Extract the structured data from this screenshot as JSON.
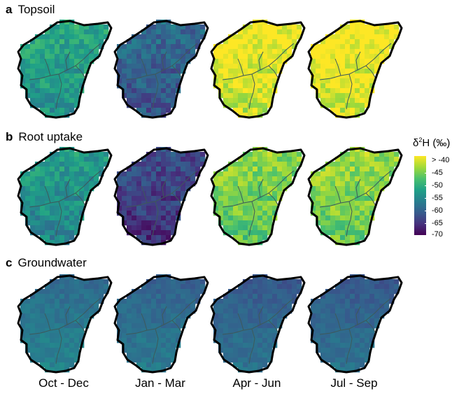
{
  "panels": [
    {
      "letter": "a",
      "title": "Topsoil",
      "levels": [
        0.55,
        0.3,
        0.95,
        0.97
      ]
    },
    {
      "letter": "b",
      "title": "Root uptake",
      "levels": [
        0.5,
        0.18,
        0.78,
        0.8
      ]
    },
    {
      "letter": "c",
      "title": "Groundwater",
      "levels": [
        0.4,
        0.36,
        0.33,
        0.33
      ]
    }
  ],
  "columns": [
    "Oct - Dec",
    "Jan - Mar",
    "Apr - Jun",
    "Jul - Sep"
  ],
  "legend": {
    "title_prefix": "δ",
    "title_sup": "2",
    "title_suffix": "H (‰)",
    "ticks": [
      "> -40",
      "-45",
      "-50",
      "-55",
      "-60",
      "-65",
      "-70"
    ],
    "colors": [
      "#fde725",
      "#a0da39",
      "#4ac16d",
      "#1fa187",
      "#277f8e",
      "#365c8d",
      "#46327e",
      "#440154"
    ]
  }
}
